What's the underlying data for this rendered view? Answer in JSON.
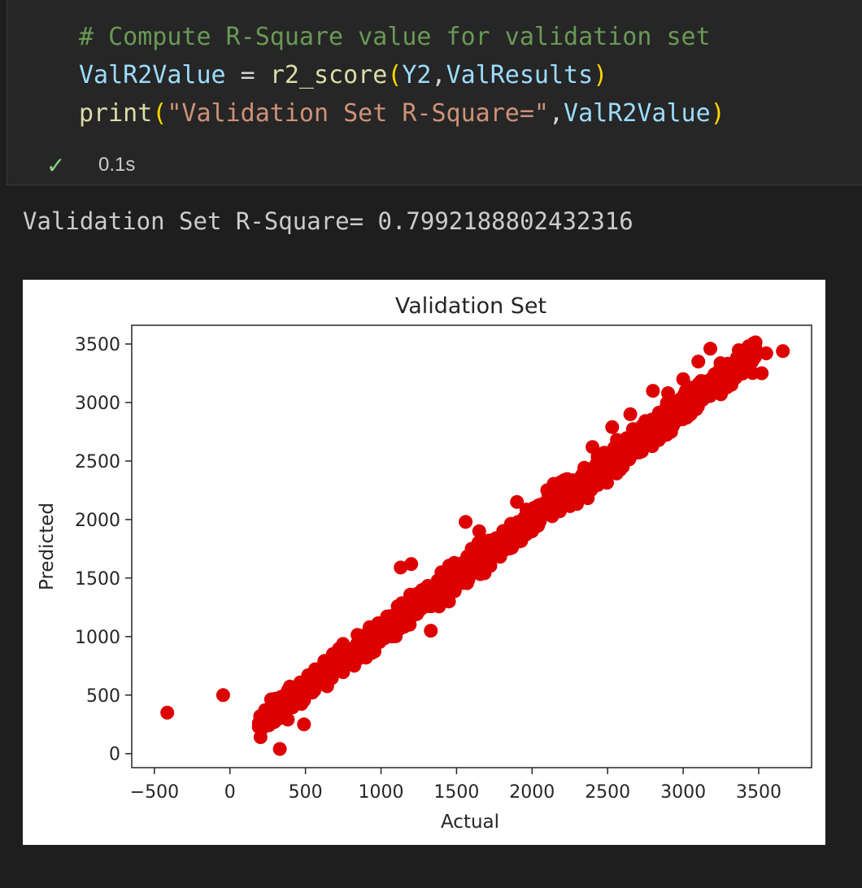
{
  "code_cell": {
    "lines": [
      [
        {
          "cls": "c-comment",
          "text": "# Compute R-Square value for validation set"
        }
      ],
      [
        {
          "cls": "c-var",
          "text": "ValR2Value"
        },
        {
          "cls": "c-op",
          "text": " = "
        },
        {
          "cls": "c-func",
          "text": "r2_score"
        },
        {
          "cls": "c-paren",
          "text": "("
        },
        {
          "cls": "c-var",
          "text": "Y2"
        },
        {
          "cls": "c-op",
          "text": ","
        },
        {
          "cls": "c-var",
          "text": "ValResults"
        },
        {
          "cls": "c-paren",
          "text": ")"
        }
      ],
      [
        {
          "cls": "c-func",
          "text": "print"
        },
        {
          "cls": "c-paren",
          "text": "("
        },
        {
          "cls": "c-str",
          "text": "\"Validation Set R-Square=\""
        },
        {
          "cls": "c-op",
          "text": ","
        },
        {
          "cls": "c-var",
          "text": "ValR2Value"
        },
        {
          "cls": "c-paren",
          "text": ")"
        }
      ]
    ],
    "status_icon": "check-icon",
    "status_glyph": "✓",
    "exec_time": "0.1s"
  },
  "output": {
    "text": "Validation Set R-Square= 0.7992188802432316"
  },
  "colors": {
    "marker": "#dd0000",
    "background": "#1e1e1e",
    "cell_background": "#262626"
  },
  "chart_data": {
    "type": "scatter",
    "title": "Validation Set",
    "xlabel": "Actual",
    "ylabel": "Predicted",
    "xlim": [
      -650,
      3850
    ],
    "ylim": [
      -120,
      3660
    ],
    "xticks": [
      -500,
      0,
      500,
      1000,
      1500,
      2000,
      2500,
      3000,
      3500
    ],
    "xtick_labels": [
      "−500",
      "0",
      "500",
      "1000",
      "1500",
      "2000",
      "2500",
      "3000",
      "3500"
    ],
    "yticks": [
      0,
      500,
      1000,
      1500,
      2000,
      2500,
      3000,
      3500
    ],
    "ytick_labels": [
      "0",
      "500",
      "1000",
      "1500",
      "2000",
      "2500",
      "3000",
      "3500"
    ],
    "grid": false,
    "legend": "none",
    "points": [
      [
        -415,
        350
      ],
      [
        -45,
        500
      ],
      [
        330,
        40
      ],
      [
        490,
        250
      ],
      [
        1560,
        1980
      ],
      [
        1130,
        1590
      ],
      [
        1200,
        1620
      ],
      [
        1300,
        1380
      ],
      [
        1330,
        1050
      ],
      [
        3180,
        3460
      ],
      [
        3660,
        3440
      ],
      [
        3520,
        3250
      ],
      [
        3290,
        3130
      ],
      [
        3420,
        3300
      ],
      [
        2190,
        2320
      ],
      [
        2530,
        2790
      ],
      [
        2800,
        3100
      ],
      [
        900,
        820
      ],
      [
        1400,
        1550
      ],
      [
        1650,
        1900
      ],
      [
        1900,
        2150
      ],
      [
        2100,
        2250
      ],
      [
        2400,
        2620
      ],
      [
        2650,
        2900
      ],
      [
        2900,
        3080
      ],
      [
        3000,
        3200
      ],
      [
        3100,
        3350
      ],
      [
        1000,
        1100
      ],
      [
        800,
        850
      ],
      [
        600,
        700
      ],
      [
        700,
        780
      ],
      [
        1250,
        1300
      ],
      [
        1750,
        1680
      ],
      [
        2000,
        1900
      ],
      [
        2300,
        2200
      ],
      [
        2600,
        2450
      ],
      [
        2850,
        2700
      ],
      [
        3050,
        2900
      ],
      [
        3300,
        3200
      ],
      [
        3450,
        3350
      ],
      [
        3550,
        3420
      ],
      [
        200,
        320
      ],
      [
        230,
        250
      ],
      [
        280,
        320
      ],
      [
        380,
        420
      ],
      [
        450,
        480
      ],
      [
        520,
        560
      ],
      [
        1450,
        1300
      ],
      [
        1600,
        1750
      ],
      [
        2700,
        2650
      ]
    ],
    "cloud": {
      "seed": 7,
      "count": 1400,
      "x_range": [
        190,
        3480
      ],
      "slope": 0.96,
      "intercept": 80,
      "spread": 95
    }
  }
}
